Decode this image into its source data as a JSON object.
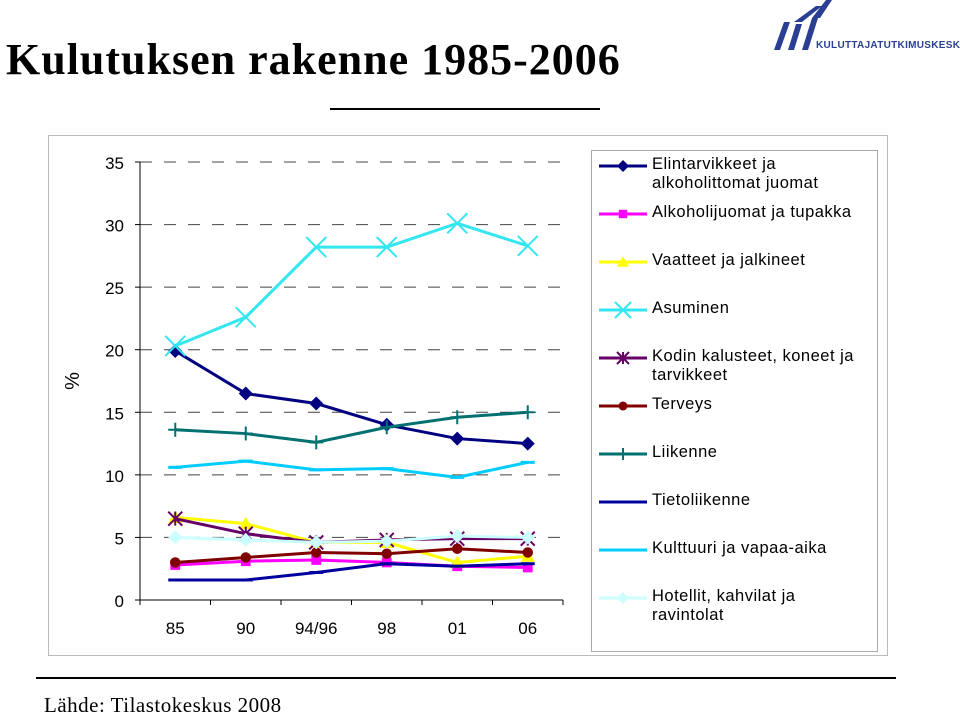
{
  "header": {
    "title": "Kulutuksen rakenne 1985-2006",
    "logo_text": "KULUTTAJATUTKIMUSKESKUS"
  },
  "footer": {
    "source": "Lähde: Tilastokeskus 2008"
  },
  "colors": {
    "logo": "#2a3f94"
  },
  "chart_data": {
    "type": "line",
    "title": "",
    "xlabel": "",
    "ylabel": "%",
    "categories": [
      "85",
      "90",
      "94/96",
      "98",
      "01",
      "06"
    ],
    "ylim": [
      0,
      35
    ],
    "yticks": [
      0,
      5,
      10,
      15,
      20,
      25,
      30,
      35
    ],
    "grid": "horizontal dashed",
    "legend_position": "right",
    "series": [
      {
        "name": "Elintarvikkeet ja alkoholittomat juomat",
        "color": "#000080",
        "marker": "diamond",
        "values": [
          19.9,
          16.5,
          15.7,
          14.0,
          12.9,
          12.5
        ]
      },
      {
        "name": "Alkoholijuomat ja tupakka",
        "color": "#ff00ff",
        "marker": "square",
        "values": [
          2.8,
          3.1,
          3.2,
          3.0,
          2.7,
          2.6
        ]
      },
      {
        "name": "Vaatteet ja jalkineet",
        "color": "#ffff00",
        "marker": "triangle",
        "values": [
          6.6,
          6.1,
          4.6,
          4.6,
          3.0,
          3.5
        ]
      },
      {
        "name": "Asuminen",
        "color": "#33e6f0",
        "marker": "x",
        "values": [
          20.3,
          22.6,
          28.2,
          28.2,
          30.1,
          28.3
        ]
      },
      {
        "name": "Kodin kalusteet, koneet ja tarvikkeet",
        "color": "#660066",
        "marker": "star",
        "values": [
          6.5,
          5.3,
          4.6,
          4.8,
          4.9,
          4.9
        ]
      },
      {
        "name": "Terveys",
        "color": "#800000",
        "marker": "circle",
        "values": [
          3.0,
          3.4,
          3.8,
          3.7,
          4.1,
          3.8
        ]
      },
      {
        "name": "Liikenne",
        "color": "#007070",
        "marker": "plus",
        "values": [
          13.6,
          13.3,
          12.6,
          13.8,
          14.6,
          15.0
        ]
      },
      {
        "name": "Tietoliikenne",
        "color": "#0000a0",
        "marker": "dash",
        "values": [
          1.6,
          1.6,
          2.2,
          2.9,
          2.7,
          2.9
        ]
      },
      {
        "name": "Kulttuuri ja vapaa-aika",
        "color": "#00ccff",
        "marker": "dash",
        "values": [
          10.6,
          11.1,
          10.4,
          10.5,
          9.8,
          11.0
        ]
      },
      {
        "name": "Hotellit, kahvilat ja ravintolat",
        "color": "#ccffff",
        "marker": "diamond",
        "values": [
          5.0,
          4.8,
          4.6,
          4.7,
          5.1,
          5.0
        ]
      }
    ]
  }
}
